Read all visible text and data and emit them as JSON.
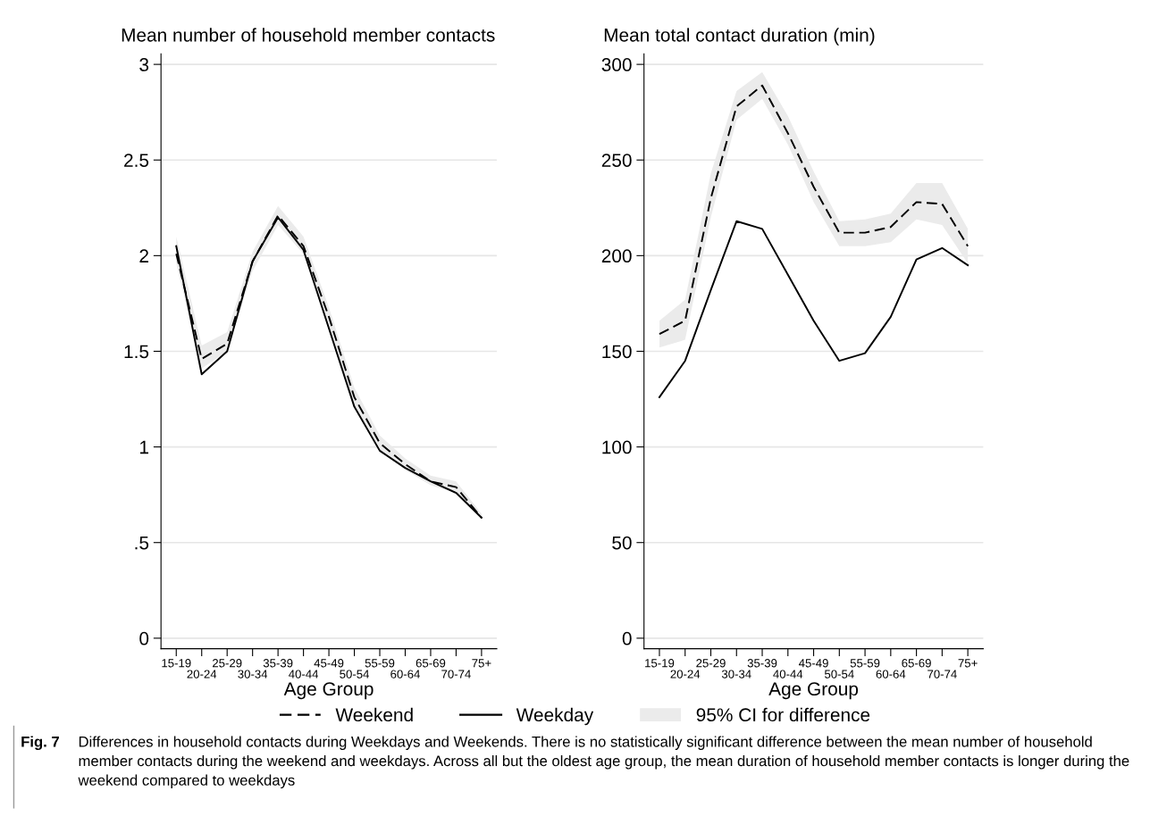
{
  "chart_data": [
    {
      "type": "line",
      "title": "Mean number of household member contacts",
      "xlabel": "Age Group",
      "categories": [
        "15-19",
        "20-24",
        "25-29",
        "30-34",
        "35-39",
        "40-44",
        "45-49",
        "50-54",
        "55-59",
        "60-64",
        "65-69",
        "70-74",
        "75+"
      ],
      "series": [
        {
          "name": "95% CI for difference",
          "type": "area",
          "color": "#ebebeb",
          "values": [
            null,
            null,
            null,
            null,
            null,
            null,
            null,
            null,
            null,
            null,
            null,
            null,
            null
          ],
          "lower": [
            1.96,
            1.41,
            1.5,
            1.92,
            2.16,
            2.01,
            1.63,
            1.22,
            0.98,
            0.88,
            0.8,
            0.76,
            0.62
          ],
          "upper": [
            2.1,
            1.53,
            1.6,
            2.02,
            2.26,
            2.1,
            1.73,
            1.31,
            1.06,
            0.94,
            0.85,
            0.82,
            0.65
          ]
        },
        {
          "name": "Weekend",
          "color": "#000000",
          "line_style": "dashed",
          "values": [
            2.01,
            1.46,
            1.54,
            1.97,
            2.21,
            2.05,
            1.68,
            1.26,
            1.02,
            0.91,
            0.82,
            0.79,
            0.63
          ]
        },
        {
          "name": "Weekday",
          "color": "#000000",
          "line_style": "solid",
          "values": [
            2.05,
            1.38,
            1.5,
            1.97,
            2.2,
            2.03,
            1.62,
            1.21,
            0.98,
            0.89,
            0.82,
            0.76,
            0.63
          ]
        }
      ],
      "ylim": [
        -0.055,
        3.055
      ],
      "yticks": [
        0,
        {
          "value": 0.5,
          "label": ".5"
        },
        1,
        1.5,
        2,
        2.5,
        3
      ],
      "grid": "y",
      "legend": "bottom",
      "marker": "none"
    },
    {
      "type": "line",
      "title": "Mean total contact duration (min)",
      "xlabel": "Age Group",
      "categories": [
        "15-19",
        "20-24",
        "25-29",
        "30-34",
        "35-39",
        "40-44",
        "45-49",
        "50-54",
        "55-59",
        "60-64",
        "65-69",
        "70-74",
        "75+"
      ],
      "series": [
        {
          "type": "area",
          "color": "#ebebeb",
          "values": [
            null,
            null,
            null,
            null,
            null,
            null,
            null,
            null,
            null,
            null,
            null,
            null,
            null
          ],
          "lower": [
            152,
            156,
            220,
            271,
            282,
            258,
            228,
            205,
            205,
            207,
            219,
            216,
            196
          ],
          "upper": [
            166,
            177,
            243,
            286,
            296,
            273,
            244,
            218,
            219,
            222,
            238,
            238,
            214
          ]
        },
        {
          "color": "#000000",
          "line_style": "dashed",
          "values": [
            159,
            166,
            230,
            278,
            289,
            264,
            236,
            212,
            212,
            215,
            228,
            227,
            205
          ]
        },
        {
          "color": "#000000",
          "line_style": "solid",
          "values": [
            126,
            145,
            182,
            218,
            214,
            190,
            166,
            145,
            149,
            168,
            198,
            204,
            195
          ]
        }
      ],
      "ylim": [
        -5.5,
        305.5
      ],
      "yticks": [
        0,
        50,
        100,
        150,
        200,
        250,
        300
      ],
      "grid": "y",
      "marker": "none",
      "annotations": [
        "Fig. 7",
        "Differences in household contacts during Weekdays and Weekends. There is no statistically significant difference between the mean number of household member contacts during the weekend and weekdays. Across all but the oldest age group, the mean duration of household member contacts is longer during the weekend compared to weekdays"
      ]
    }
  ]
}
